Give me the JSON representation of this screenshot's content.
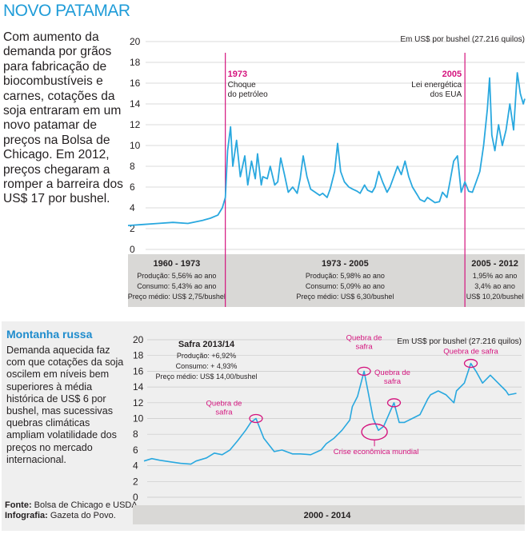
{
  "header": {
    "title": "NOVO PATAMAR"
  },
  "intro_text": "Com aumento da demanda por grãos para fabricação de biocombustíveis e carnes, cotações da soja entraram em um novo patamar de preços na Bolsa de Chicago. Em 2012, preços chegaram a romper a barreira dos US$ 17 por bushel.",
  "box": {
    "title": "Montanha russa",
    "text": "Demanda aquecida faz com que cotações da soja oscilem em níveis bem superiores à média histórica de US$ 6 por bushel, mas sucessivas quebras climáticas ampliam volatilidade dos preços no mercado internacional."
  },
  "credits": {
    "fonte_label": "Fonte:",
    "fonte_text": "Bolsa de Chicago e USDA.",
    "info_label": "Infografia:",
    "info_text": "Gazeta do Povo."
  },
  "colors": {
    "line": "#29a8df",
    "accent": "#d4147e",
    "band": "#d9d8d6",
    "title": "#1f9cd8"
  },
  "chart_data": [
    {
      "type": "line",
      "unit_label": "Em US$ por bushel (27.216 quilos)",
      "x_range": [
        1960,
        2013
      ],
      "ylim": [
        0,
        20
      ],
      "yticks": [
        0,
        2,
        4,
        6,
        8,
        10,
        12,
        14,
        16,
        18,
        20
      ],
      "x": [
        1960,
        1962,
        1964,
        1966,
        1968,
        1970,
        1971,
        1972,
        1972.6,
        1973,
        1973.3,
        1973.7,
        1974,
        1974.5,
        1975,
        1975.6,
        1976,
        1976.5,
        1977,
        1977.3,
        1977.8,
        1978,
        1978.6,
        1979,
        1979.6,
        1980,
        1980.4,
        1980.9,
        1981.4,
        1982,
        1982.6,
        1983,
        1983.4,
        1983.9,
        1984.4,
        1985,
        1985.6,
        1986,
        1986.6,
        1987,
        1987.6,
        1988,
        1988.4,
        1988.9,
        1989.5,
        1990,
        1990.6,
        1991,
        1991.6,
        1992,
        1992.6,
        1993,
        1993.5,
        1994,
        1994.6,
        1995,
        1995.6,
        1996,
        1996.5,
        1997,
        1997.5,
        1998,
        1998.6,
        1999,
        1999.6,
        2000,
        2000.6,
        2001,
        2001.6,
        2002,
        2002.6,
        2003,
        2003.5,
        2004,
        2004.5,
        2005,
        2005.5,
        2006,
        2006.5,
        2007,
        2007.5,
        2008,
        2008.3,
        2008.6,
        2009,
        2009.5,
        2010,
        2010.5,
        2011,
        2011.5,
        2012,
        2012.4,
        2012.8,
        2013
      ],
      "y": [
        2.3,
        2.4,
        2.5,
        2.6,
        2.5,
        2.8,
        3.0,
        3.3,
        4.0,
        5.0,
        9.5,
        11.8,
        8.0,
        10.5,
        7.0,
        9.0,
        6.2,
        8.5,
        6.8,
        9.2,
        6.2,
        7.0,
        6.8,
        8.0,
        6.2,
        6.5,
        8.8,
        7.2,
        5.5,
        6.0,
        5.4,
        6.8,
        9.0,
        7.0,
        5.8,
        5.5,
        5.2,
        5.4,
        5.0,
        5.8,
        7.5,
        10.2,
        7.5,
        6.5,
        6.0,
        5.8,
        5.6,
        5.4,
        6.2,
        5.7,
        5.5,
        6.0,
        7.5,
        6.5,
        5.5,
        6.0,
        7.2,
        8.0,
        7.2,
        8.5,
        7.0,
        6.0,
        5.3,
        4.8,
        4.6,
        5.0,
        4.7,
        4.5,
        4.6,
        5.5,
        5.0,
        6.5,
        8.5,
        9.0,
        5.5,
        6.5,
        5.6,
        5.5,
        6.5,
        7.5,
        10.0,
        13.5,
        16.5,
        11.0,
        9.5,
        12.0,
        10.0,
        11.5,
        14.0,
        11.5,
        17.0,
        15.0,
        14.0,
        14.5
      ],
      "vlines": [
        {
          "year": "1973",
          "label": [
            "Choque",
            "do petróleo"
          ],
          "x": 1973
        },
        {
          "year": "2005",
          "label": [
            "Lei energética",
            "dos EUA"
          ],
          "x": 2005
        }
      ],
      "periods": [
        {
          "label": "1960 - 1973",
          "from": 1960,
          "to": 1973,
          "lines": [
            "Produção: 5,56% ao ano",
            "Consumo: 5,43% ao ano",
            "Preço médio: US$ 2,75/bushel"
          ]
        },
        {
          "label": "1973 - 2005",
          "from": 1973,
          "to": 2005,
          "lines": [
            "Produção: 5,98% ao ano",
            "Consumo: 5,09% ao ano",
            "Preço médio: US$ 6,30/bushel"
          ]
        },
        {
          "label": "2005 - 2012",
          "from": 2005,
          "to": 2013,
          "lines": [
            "1,95% ao ano",
            "3,4% ao ano",
            "US$ 10,20/bushel"
          ]
        }
      ]
    },
    {
      "type": "line",
      "unit_label": "Em US$ por bushel (27.216 quilos)",
      "x_range": [
        2000,
        2014.5
      ],
      "ylim": [
        0,
        20
      ],
      "yticks": [
        0,
        2,
        4,
        6,
        8,
        10,
        12,
        14,
        16,
        18,
        20
      ],
      "period_label": "2000 - 2014",
      "x": [
        2000,
        2000.3,
        2000.6,
        2001,
        2001.4,
        2001.8,
        2002,
        2002.4,
        2002.7,
        2003,
        2003.3,
        2003.6,
        2003.9,
        2004.1,
        2004.3,
        2004.6,
        2005,
        2005.3,
        2005.7,
        2006,
        2006.4,
        2006.8,
        2007,
        2007.3,
        2007.6,
        2007.9,
        2008,
        2008.2,
        2008.45,
        2008.6,
        2008.8,
        2009,
        2009.2,
        2009.4,
        2009.6,
        2009.8,
        2010,
        2010.3,
        2010.6,
        2010.9,
        2011,
        2011.3,
        2011.6,
        2011.9,
        2012,
        2012.3,
        2012.55,
        2012.75,
        2013,
        2013.3,
        2013.6,
        2013.9,
        2014,
        2014.3
      ],
      "y": [
        4.6,
        4.9,
        4.7,
        4.5,
        4.3,
        4.2,
        4.6,
        5.0,
        5.6,
        5.4,
        6.0,
        7.2,
        8.5,
        9.5,
        10.0,
        7.5,
        5.8,
        6.0,
        5.5,
        5.5,
        5.4,
        6.0,
        6.8,
        7.5,
        8.5,
        9.8,
        11.5,
        12.8,
        16.0,
        13.5,
        10.0,
        8.5,
        9.0,
        10.5,
        12.0,
        9.5,
        9.5,
        10.0,
        10.5,
        12.5,
        13.0,
        13.5,
        13.0,
        12.0,
        13.5,
        14.5,
        17.0,
        16.0,
        14.5,
        15.5,
        14.5,
        13.5,
        13.0,
        13.2
      ],
      "safra_box": {
        "title": "Safra 2013/14",
        "lines": [
          "Produção: +6,92%",
          "Consumo: + 4,93%",
          "Preço médio: US$ 14,00/bushel"
        ]
      },
      "annotations": [
        {
          "label": [
            "Quebra de",
            "safra"
          ],
          "x": 2004.3,
          "y": 10.0
        },
        {
          "label": [
            "Quebra de",
            "safra"
          ],
          "x": 2008.45,
          "y": 16.0
        },
        {
          "label": [
            "Quebra de",
            "safra"
          ],
          "x": 2009.6,
          "y": 12.0
        },
        {
          "label": [
            "Quebra de safra"
          ],
          "x": 2012.55,
          "y": 17.0
        },
        {
          "label": [
            "Crise econômica mundial"
          ],
          "x": 2008.85,
          "y": 8.3
        }
      ]
    }
  ]
}
